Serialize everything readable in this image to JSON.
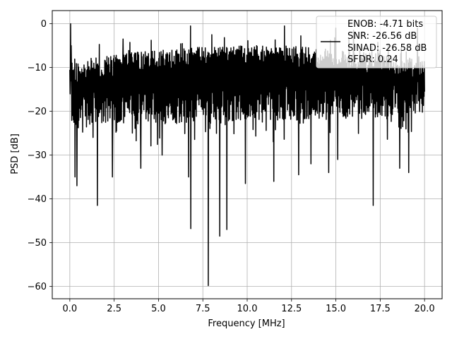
{
  "chart_data": {
    "type": "line",
    "title": "",
    "xlabel": "Frequency [MHz]",
    "ylabel": "PSD [dB]",
    "xlim": [
      -0.99,
      20.99
    ],
    "ylim": [
      -62.8,
      3.0
    ],
    "xticks": [
      0.0,
      2.5,
      5.0,
      7.5,
      10.0,
      12.5,
      15.0,
      17.5,
      20.0
    ],
    "xtick_labels": [
      "0.0",
      "2.5",
      "5.0",
      "7.5",
      "10.0",
      "12.5",
      "15.0",
      "17.5",
      "20.0"
    ],
    "yticks": [
      0,
      -10,
      -20,
      -30,
      -40,
      -50,
      -60
    ],
    "ytick_labels": [
      "0",
      "−10",
      "−20",
      "−30",
      "−40",
      "−50",
      "−60"
    ],
    "grid": true,
    "legend_position": "top-right",
    "line_color": "#000000",
    "legend": [
      "ENOB: -4.71 bits",
      "SNR: -26.56 dB",
      "SINAD: -26.58 dB",
      "SFDR: 0.24"
    ],
    "series": [
      {
        "noise_band": {
          "x_start": 0.0,
          "x_end": 20.0,
          "band_top": [
            [
              0,
              -9
            ],
            [
              1,
              -8
            ],
            [
              2.5,
              -7
            ],
            [
              5,
              -6
            ],
            [
              8,
              -5
            ],
            [
              12,
              -5
            ],
            [
              16,
              -6
            ],
            [
              18,
              -7
            ],
            [
              20,
              -8
            ]
          ],
          "band_bottom": [
            [
              0,
              -24
            ],
            [
              2.5,
              -23
            ],
            [
              5,
              -23
            ],
            [
              10,
              -22
            ],
            [
              15,
              -22
            ],
            [
              20,
              -21
            ]
          ]
        },
        "peaks": [
          [
            0.05,
            0.0
          ],
          [
            0.08,
            -5.0
          ],
          [
            0.12,
            -9.0
          ],
          [
            6.8,
            -0.5
          ],
          [
            11.5,
            -0.5
          ],
          [
            12.1,
            -0.5
          ],
          [
            15.0,
            -1.0
          ],
          [
            16.0,
            -1.5
          ],
          [
            19.6,
            -1.0
          ],
          [
            3.0,
            -3.5
          ],
          [
            8.0,
            -2.5
          ]
        ],
        "dips": [
          [
            0.3,
            -35.0
          ],
          [
            0.4,
            -37.0
          ],
          [
            1.55,
            -41.5
          ],
          [
            2.4,
            -35.0
          ],
          [
            4.0,
            -33.0
          ],
          [
            5.2,
            -30.0
          ],
          [
            6.7,
            -35.0
          ],
          [
            6.82,
            -46.8
          ],
          [
            7.8,
            -59.8
          ],
          [
            8.45,
            -48.5
          ],
          [
            8.85,
            -47.0
          ],
          [
            9.9,
            -36.5
          ],
          [
            11.5,
            -36.0
          ],
          [
            12.9,
            -34.5
          ],
          [
            13.6,
            -32.0
          ],
          [
            14.6,
            -34.0
          ],
          [
            15.1,
            -31.0
          ],
          [
            17.1,
            -41.5
          ],
          [
            18.6,
            -33.0
          ],
          [
            19.1,
            -34.0
          ]
        ]
      }
    ]
  }
}
